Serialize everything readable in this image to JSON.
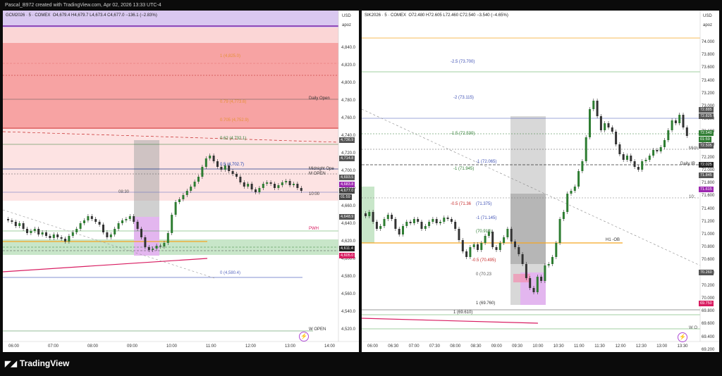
{
  "header": {
    "title": "Pascal_B972 created with TradingView.com, Apr 02, 2026 13:33 UTC-4"
  },
  "brand": {
    "name": "TradingView"
  },
  "colors": {
    "up": "#2e7d32",
    "down": "#333333",
    "red_zone": "#f7a3a3",
    "red_light": "#fbd6d6",
    "green_zone": "#c8e6c9",
    "purple_zone": "#e3b6ef",
    "grey_zone": "#a9a9a9",
    "orange": "#f5a623",
    "magenta": "#d81b60",
    "purple_tag": "#9c27b0"
  },
  "left": {
    "symbol": "GCM2026 · 5 · COMEX",
    "ohlc": "O4,679.4 H4,679.7 L4,673.4 C4,677.0 −136.1 (−2.83%)",
    "currency": "USD",
    "scale_mode": "apoz",
    "y_ticks": [
      "4,840.0",
      "4,820.0",
      "4,800.0",
      "4,780.0",
      "4,760.0",
      "4,740.0",
      "4,720.0",
      "4,700.0",
      "4,680.0",
      "4,660.0",
      "4,640.0",
      "4,620.0",
      "4,600.0",
      "4,580.0",
      "4,560.0",
      "4,540.0",
      "4,520.0"
    ],
    "x_ticks": [
      "06:00",
      "07:00",
      "08:00",
      "09:00",
      "10:00",
      "11:00",
      "12:00",
      "13:00",
      "14:00"
    ],
    "price_tags": [
      {
        "text": "4,736.9",
        "bg": "#555555"
      },
      {
        "text": "4,714.8",
        "bg": "#555555"
      },
      {
        "text": "4,693.5",
        "bg": "#555555"
      },
      {
        "text": "4,683.8",
        "bg": "#9c27b0"
      },
      {
        "text": "4,677.0",
        "bg": "#444444"
      },
      {
        "text": "01:59",
        "bg": "#444444"
      },
      {
        "text": "4,648.9",
        "bg": "#555555"
      },
      {
        "text": "4,611.4",
        "bg": "#222222"
      },
      {
        "text": "4,605.0",
        "bg": "#d81b60"
      }
    ],
    "levels": {
      "fib_1": "1 (4,825.0)",
      "fib_079": "0.79 (4,773.6)",
      "fib_0705": "0.705 (4,752.9)",
      "fib_062": "0.62 (4,732.1)",
      "fib_05": "0.5 (4,702.7)",
      "fib_0": "0 (4,580.4)",
      "daily_open": "Daily Open",
      "midnight_open": "Midnight Ope",
      "m_open": "M OPEN",
      "pwh": "PWH",
      "w_open": "W OPEN",
      "time_0830": "08:30",
      "time_1000": "10:00"
    }
  },
  "right": {
    "symbol": "SIK2026 · 5 · COMEX",
    "ohlc": "O72.480 H72.605 L72.460 C72.540 −3.540 (−4.65%)",
    "currency": "USD",
    "scale_mode": "apoz",
    "y_ticks": [
      "74.000",
      "73.800",
      "73.600",
      "73.400",
      "73.200",
      "73.000",
      "72.800",
      "72.600",
      "72.400",
      "72.200",
      "72.000",
      "71.800",
      "71.600",
      "71.400",
      "71.200",
      "71.000",
      "70.800",
      "70.600",
      "70.400",
      "70.200",
      "70.000",
      "69.800",
      "69.600",
      "69.400",
      "69.200"
    ],
    "x_ticks": [
      "06:00",
      "06:30",
      "07:00",
      "07:30",
      "08:00",
      "08:30",
      "09:00",
      "09:30",
      "10:00",
      "10:30",
      "11:00",
      "11:30",
      "12:00",
      "12:30",
      "13:00",
      "13:30"
    ],
    "price_tags": [
      {
        "text": "72.885",
        "bg": "#555555"
      },
      {
        "text": "72.825",
        "bg": "#555555"
      },
      {
        "text": "72.540",
        "bg": "#2e7d32"
      },
      {
        "text": "01:59",
        "bg": "#2e7d32"
      },
      {
        "text": "72.505",
        "bg": "#555555"
      },
      {
        "text": "72.025",
        "bg": "#222222"
      },
      {
        "text": "71.845",
        "bg": "#555555"
      },
      {
        "text": "71.615",
        "bg": "#9c27b0"
      },
      {
        "text": "70.260",
        "bg": "#555555"
      },
      {
        "text": "69.750",
        "bg": "#d81b60"
      }
    ],
    "levels": {
      "m25": "-2.5 (73.700)",
      "m2": "-2 (73.115)",
      "m15": "-1.5 (72.530)",
      "m1": "-1 (71.945)",
      "m1b": "-1 (72.065)",
      "m05": "-0.5 (71.36",
      "v71375": "(71.375)",
      "m0": "0 (70.23",
      "p1": "-1 (71.145)",
      "p0910": "(70.910)",
      "p0495": "-0.5 (70.495)",
      "p1_69760": "1 (69.760)",
      "p1_69610": "1 (69.610)",
      "h1": "H1 -OB",
      "daily": "Daily IR",
      "mid": "Midn",
      "t10": "10:",
      "w": "W O"
    }
  }
}
